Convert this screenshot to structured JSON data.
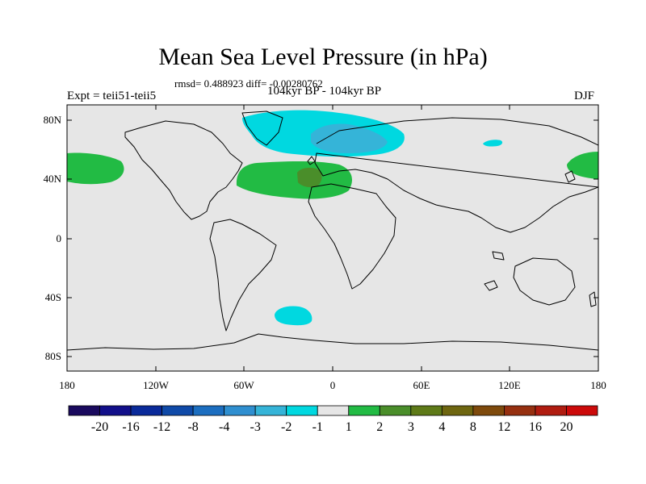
{
  "header": {
    "title": "Mean Sea Level Pressure (in hPa)",
    "stats": "rmsd= 0.488923 diff= -0.00280762",
    "experiment": "Expt = teii51-teii5",
    "period": "104kyr BP - 104kyr BP",
    "season": "DJF"
  },
  "axes": {
    "lat_labels": [
      "80N",
      "40N",
      "0",
      "40S",
      "80S"
    ],
    "lon_labels": [
      "180",
      "120W",
      "60W",
      "0",
      "60E",
      "120E",
      "180"
    ]
  },
  "colorbar": {
    "labels": [
      "-20",
      "-16",
      "-12",
      "-8",
      "-4",
      "-3",
      "-2",
      "-1",
      "1",
      "2",
      "3",
      "4",
      "8",
      "12",
      "16",
      "20"
    ],
    "colors": [
      "#1a0a5e",
      "#120f8a",
      "#0a2a9a",
      "#0f4aa8",
      "#1c6ec0",
      "#2f8fd0",
      "#35b4d8",
      "#00d8e0",
      "#e6e6e6",
      "#22bb44",
      "#4a8e2a",
      "#5e7a18",
      "#6e6610",
      "#7e4a0c",
      "#963010",
      "#b01c10",
      "#cc0a0a"
    ]
  },
  "map": {
    "background": "#e6e6e6",
    "anomalies": [
      {
        "name": "north-atlantic-low",
        "class": "-2 to -1",
        "color": "#00d8e0"
      },
      {
        "name": "scandinavia-low-core",
        "class": "-3 to -2",
        "color": "#35b4d8"
      },
      {
        "name": "atlantic-high",
        "class": "1 to 2",
        "color": "#22bb44"
      },
      {
        "name": "iberia-high-core",
        "class": "2 to 3",
        "color": "#4a8e2a"
      },
      {
        "name": "north-pacific-high",
        "class": "1 to 2",
        "color": "#22bb44"
      },
      {
        "name": "south-atlantic-low",
        "class": "-2 to -1",
        "color": "#00d8e0"
      },
      {
        "name": "arctic-small-low",
        "class": "-2 to -1",
        "color": "#00d8e0"
      }
    ]
  }
}
